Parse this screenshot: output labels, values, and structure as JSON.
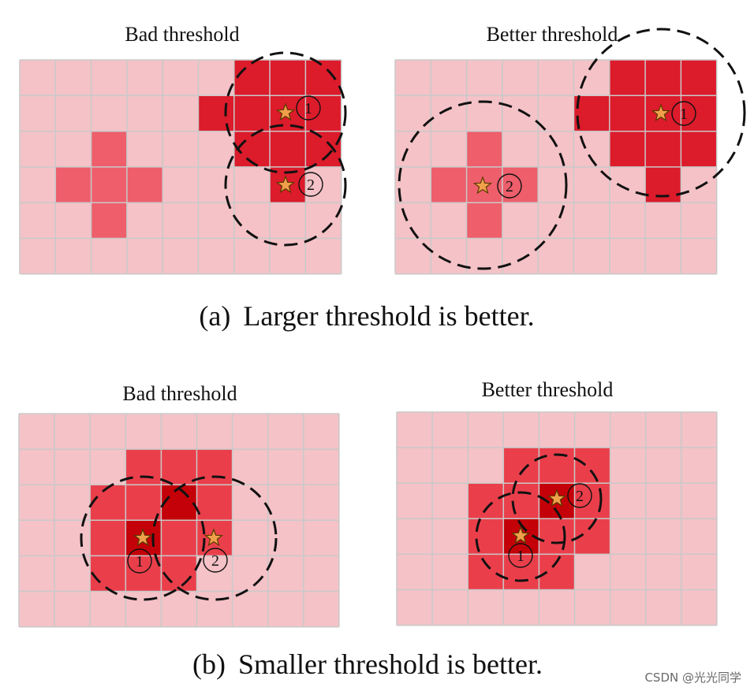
{
  "panel_a": {
    "caption_label": "(a)",
    "caption_text": "Larger threshold is better.",
    "left_title": "Bad threshold",
    "right_title": "Better threshold"
  },
  "panel_b": {
    "caption_label": "(b)",
    "caption_text": "Smaller threshold is better.",
    "left_title": "Bad threshold",
    "right_title": "Better threshold"
  },
  "markers": {
    "one": "1",
    "two": "2"
  },
  "watermark": "CSDN @光光同学",
  "colors": {
    "background_cell": "#f4c2c7",
    "grid_line": "#c9c9c9",
    "dark_red": "#dc1b2b",
    "medium_red": "#ee5e6b",
    "red": "#ea3f4b",
    "very_dark_red": "#c40008",
    "star_fill": "#f0a04b",
    "star_stroke": "#5a3a00"
  }
}
